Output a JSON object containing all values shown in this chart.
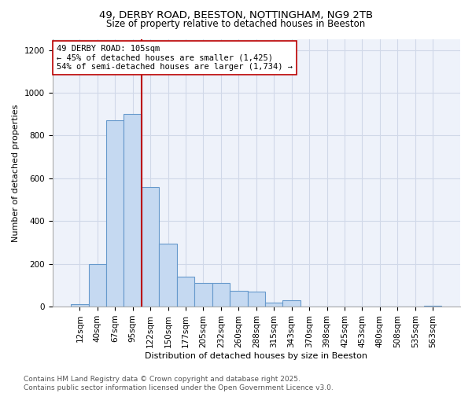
{
  "title1": "49, DERBY ROAD, BEESTON, NOTTINGHAM, NG9 2TB",
  "title2": "Size of property relative to detached houses in Beeston",
  "xlabel": "Distribution of detached houses by size in Beeston",
  "ylabel": "Number of detached properties",
  "categories": [
    "12sqm",
    "40sqm",
    "67sqm",
    "95sqm",
    "122sqm",
    "150sqm",
    "177sqm",
    "205sqm",
    "232sqm",
    "260sqm",
    "288sqm",
    "315sqm",
    "343sqm",
    "370sqm",
    "398sqm",
    "425sqm",
    "453sqm",
    "480sqm",
    "508sqm",
    "535sqm",
    "563sqm"
  ],
  "values": [
    10,
    200,
    870,
    900,
    560,
    295,
    140,
    110,
    110,
    75,
    70,
    20,
    30,
    0,
    0,
    0,
    0,
    0,
    0,
    0,
    5
  ],
  "bar_color": "#c5d9f1",
  "bar_edgecolor": "#6699cc",
  "vline_x_index": 3.5,
  "vline_color": "#bb0000",
  "annotation_text": "49 DERBY ROAD: 105sqm\n← 45% of detached houses are smaller (1,425)\n54% of semi-detached houses are larger (1,734) →",
  "annotation_box_edgecolor": "#bb0000",
  "annotation_box_facecolor": "#ffffff",
  "ylim": [
    0,
    1250
  ],
  "yticks": [
    0,
    200,
    400,
    600,
    800,
    1000,
    1200
  ],
  "grid_color": "#d0d8e8",
  "bg_color": "#eef2fa",
  "footer": "Contains HM Land Registry data © Crown copyright and database right 2025.\nContains public sector information licensed under the Open Government Licence v3.0.",
  "title1_fontsize": 9.5,
  "title2_fontsize": 8.5,
  "xlabel_fontsize": 8,
  "ylabel_fontsize": 8,
  "tick_fontsize": 7.5,
  "annotation_fontsize": 7.5,
  "footer_fontsize": 6.5
}
